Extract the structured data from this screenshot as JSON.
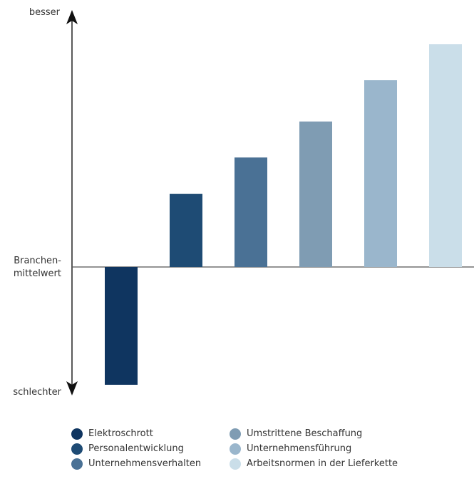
{
  "chart_data": {
    "type": "bar",
    "categories": [
      "Elektroschrott",
      "Personalentwicklung",
      "Unternehmensverhalten",
      "Umstrittene Beschaffung",
      "Unternehmensführung",
      "Arbeitsnormen in der Lieferkette"
    ],
    "values": [
      -165,
      102,
      153,
      203,
      261,
      311
    ],
    "colors": [
      "#0f3560",
      "#1e4b74",
      "#4a7195",
      "#7f9cb3",
      "#9ab6cc",
      "#cadee9"
    ],
    "ylim": [
      -165,
      311
    ],
    "axis_labels": {
      "top": "besser",
      "baseline_line1": "Branchen-",
      "baseline_line2": "mittelwert",
      "bottom": "schlechter"
    },
    "legend_placement": "bottom"
  }
}
